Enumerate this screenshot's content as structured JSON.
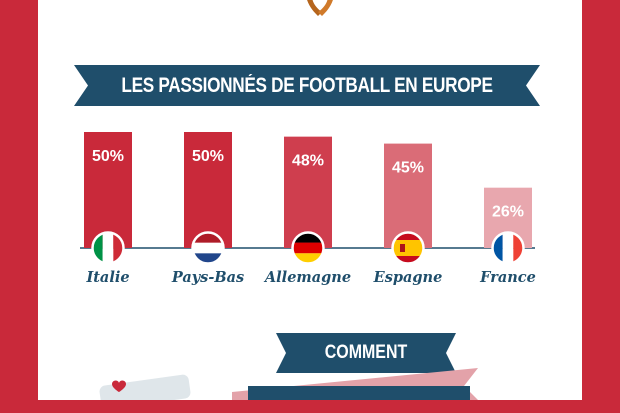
{
  "header": {
    "title": "LES PASSIONNÉS DE FOOTBALL EN EUROPE"
  },
  "chart_data": {
    "type": "bar",
    "categories": [
      "Italie",
      "Pays-Bas",
      "Allemagne",
      "Espagne",
      "France"
    ],
    "values": [
      50,
      50,
      48,
      45,
      26
    ],
    "value_labels": [
      "50%",
      "50%",
      "48%",
      "45%",
      "26%"
    ],
    "ylim": [
      0,
      50
    ],
    "unit": "%",
    "bar_colors": [
      "#c9293a",
      "#c9293a",
      "#cf3e4e",
      "#da6c77",
      "#e8a7ae"
    ],
    "flags": [
      "italy-flag-icon",
      "netherlands-flag-icon",
      "germany-flag-icon",
      "spain-flag-icon",
      "france-flag-icon"
    ]
  },
  "section2": {
    "title": "COMMENT SÉDUIRE"
  },
  "colors": {
    "accent_red": "#c9293a",
    "navy": "#1f4e6b",
    "text_blue": "#1f4e6b"
  }
}
